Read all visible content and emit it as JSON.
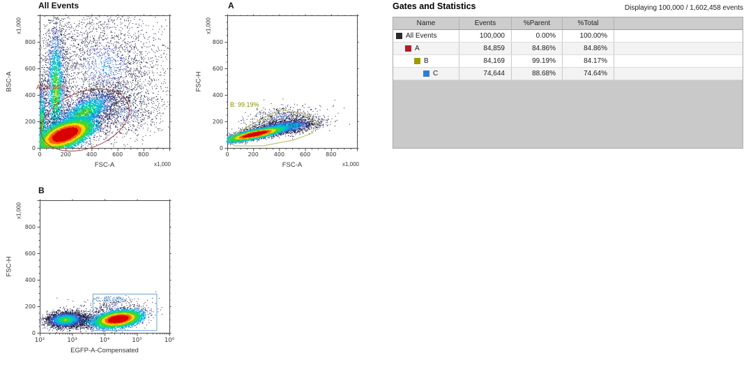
{
  "panel": {
    "title": "Gates and Statistics",
    "displaying": "Displaying 100,000 / 1,602,458 events",
    "table": {
      "columns": [
        "Name",
        "Events",
        "%Parent",
        "%Total",
        ""
      ],
      "rows": [
        {
          "name": "All Events",
          "color": "#2b2b2b",
          "indent": 0,
          "events": "100,000",
          "parent": "0.00%",
          "total": "100.00%"
        },
        {
          "name": "A",
          "color": "#b01e23",
          "indent": 1,
          "events": "84,859",
          "parent": "84.86%",
          "total": "84.86%"
        },
        {
          "name": "B",
          "color": "#9c9c00",
          "indent": 2,
          "events": "84,169",
          "parent": "99.19%",
          "total": "84.17%"
        },
        {
          "name": "C",
          "color": "#2d7dd8",
          "indent": 3,
          "events": "74,644",
          "parent": "88.68%",
          "total": "74.64%"
        }
      ]
    }
  },
  "chart_data": [
    {
      "type": "scatter",
      "title": "All Events",
      "xlabel": "FSC-A",
      "ylabel": "BSC-A",
      "x_multiplier": "x1,000",
      "y_multiplier": "x1,000",
      "xscale": "linear",
      "xlim": [
        0,
        1000
      ],
      "ylim": [
        0,
        1000
      ],
      "xticks": [
        0,
        200,
        400,
        600,
        800
      ],
      "yticks": [
        0,
        200,
        400,
        600,
        800
      ],
      "gate": {
        "shape": "ellipse",
        "name": "A",
        "label": "A: 84.86%",
        "percent": "84.86%",
        "color": "#a04545",
        "label_color": "#b03232",
        "center": [
          350,
          210
        ],
        "rx": 355,
        "ry": 212,
        "angle_deg": -21
      },
      "populations": [
        {
          "n": 2800,
          "cx": 500,
          "cy": 620,
          "sx": 260,
          "sy": 235,
          "rho": -0.1,
          "shift": 2.3
        },
        {
          "n": 700,
          "cx": 640,
          "cy": 260,
          "sx": 180,
          "sy": 95,
          "rho": 0.3,
          "shift": 2.4
        },
        {
          "n": 2400,
          "cx": 125,
          "cy": 430,
          "sx": 42,
          "sy": 290,
          "rho": 0,
          "shift": 1.3
        },
        {
          "n": 1100,
          "cx": 18,
          "cy": 170,
          "sx": 20,
          "sy": 170,
          "rho": 0,
          "shift": 1.25
        },
        {
          "n": 3000,
          "cx": 340,
          "cy": 260,
          "sx": 150,
          "sy": 105,
          "rho": 0.65,
          "shift": 1.4
        },
        {
          "n": 8000,
          "cx": 195,
          "cy": 100,
          "sx": 105,
          "sy": 58,
          "rho": 0.55,
          "shift": 0
        }
      ]
    },
    {
      "type": "scatter",
      "title": "A",
      "xlabel": "FSC-A",
      "ylabel": "FSC-H",
      "x_multiplier": "x1,000",
      "y_multiplier": "x1,000",
      "xscale": "linear",
      "xlim": [
        0,
        1000
      ],
      "ylim": [
        0,
        1000
      ],
      "xticks": [
        0,
        200,
        400,
        600,
        800
      ],
      "yticks": [
        0,
        200,
        400,
        600,
        800
      ],
      "gate": {
        "shape": "polygon",
        "name": "B",
        "label": "B: 99.19%",
        "percent": "99.19%",
        "color": "#b5b55a",
        "label_color": "#8f8f00",
        "points": [
          [
            11,
            53
          ],
          [
            54,
            16
          ],
          [
            274,
            16
          ],
          [
            505,
            58
          ],
          [
            656,
            111
          ],
          [
            683,
            184
          ],
          [
            602,
            253
          ],
          [
            414,
            289
          ],
          [
            183,
            174
          ],
          [
            32,
            84
          ]
        ]
      },
      "populations": [
        {
          "n": 500,
          "cx": 420,
          "cy": 235,
          "sx": 130,
          "sy": 45,
          "rho": 0.3,
          "shift": 2.4
        },
        {
          "n": 2600,
          "cx": 430,
          "cy": 155,
          "sx": 135,
          "sy": 33,
          "rho": 0.55,
          "shift": 1.5
        },
        {
          "n": 8000,
          "cx": 215,
          "cy": 103,
          "sx": 105,
          "sy": 26,
          "rho": 0.8,
          "shift": 0
        }
      ]
    },
    {
      "type": "scatter",
      "title": "B",
      "xlabel": "EGFP-A-Compensated",
      "ylabel": "FSC-H",
      "y_multiplier": "x1,000",
      "xscale": "log",
      "xlim_log": [
        2,
        6
      ],
      "ylim": [
        0,
        1000
      ],
      "xticks_log": [
        2,
        3,
        4,
        5,
        6
      ],
      "xtick_labels": [
        "10²",
        "10³",
        "10⁴",
        "10⁵",
        "10⁶"
      ],
      "yticks": [
        0,
        200,
        400,
        600,
        800
      ],
      "gate": {
        "shape": "rect",
        "name": "C",
        "label": "C: 88.68%",
        "percent": "88.68%",
        "color": "#69a3d9",
        "label_color": "#4f97d4",
        "x_log": [
          3.63,
          5.6
        ],
        "y": [
          20,
          295
        ]
      },
      "populations": [
        {
          "n": 350,
          "cx": 4.3,
          "cy": 185,
          "sx": 0.5,
          "sy": 45,
          "rho": 0,
          "shift": 2.45
        },
        {
          "n": 550,
          "cx": 3.5,
          "cy": 85,
          "sx": 0.3,
          "sy": 28,
          "rho": 0,
          "shift": 1.9
        },
        {
          "n": 3000,
          "cx": 2.8,
          "cy": 98,
          "sx": 0.3,
          "sy": 30,
          "rho": 0.1,
          "shift": 1.3
        },
        {
          "n": 6500,
          "cx": 4.42,
          "cy": 103,
          "sx": 0.34,
          "sy": 31,
          "rho": 0.35,
          "shift": 0
        }
      ]
    }
  ]
}
